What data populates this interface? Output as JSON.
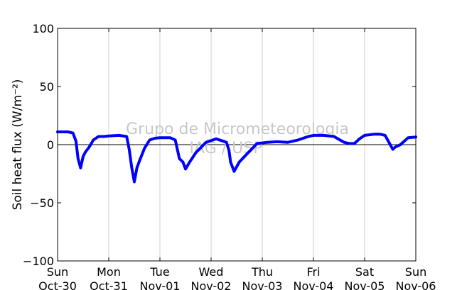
{
  "chart_data": {
    "type": "line",
    "ylabel": "Soil heat flux (W/m⁻²)",
    "ylim": [
      -100,
      100
    ],
    "yticks": [
      100,
      50,
      0,
      -50,
      -100
    ],
    "ytick_labels": [
      "100",
      "50",
      "0",
      "−50",
      "−100"
    ],
    "xlim": [
      0,
      7
    ],
    "xtick_labels": [
      {
        "day": "Sun",
        "date": "Oct-30"
      },
      {
        "day": "Mon",
        "date": "Oct-31"
      },
      {
        "day": "Tue",
        "date": "Nov-01"
      },
      {
        "day": "Wed",
        "date": "Nov-02"
      },
      {
        "day": "Thu",
        "date": "Nov-03"
      },
      {
        "day": "Fri",
        "date": "Nov-04"
      },
      {
        "day": "Sat",
        "date": "Nov-05"
      },
      {
        "day": "Sun",
        "date": "Nov-06"
      }
    ],
    "grid": "vertical",
    "reference_line": 0,
    "series": [
      {
        "color": "#0000ff",
        "x": [
          0.0,
          0.2,
          0.3,
          0.36,
          0.4,
          0.45,
          0.5,
          0.55,
          0.62,
          0.7,
          0.8,
          0.9,
          1.0,
          1.2,
          1.35,
          1.4,
          1.45,
          1.5,
          1.55,
          1.6,
          1.7,
          1.8,
          1.9,
          2.0,
          2.2,
          2.3,
          2.38,
          2.45,
          2.5,
          2.58,
          2.7,
          2.9,
          3.1,
          3.3,
          3.35,
          3.38,
          3.45,
          3.55,
          3.7,
          3.9,
          4.1,
          4.3,
          4.5,
          4.7,
          4.9,
          5.0,
          5.2,
          5.4,
          5.6,
          5.7,
          5.8,
          5.9,
          6.0,
          6.2,
          6.3,
          6.4,
          6.5,
          6.55,
          6.6,
          6.7,
          6.85,
          7.0
        ],
        "y": [
          11,
          11,
          10,
          3,
          -12,
          -20,
          -10,
          -6,
          -2,
          4,
          7,
          7,
          7.5,
          8,
          7,
          -4,
          -20,
          -32,
          -20,
          -14,
          -3,
          4,
          5.5,
          6,
          6,
          4,
          -12,
          -15,
          -21,
          -15,
          -7,
          2,
          5,
          2,
          -5,
          -15,
          -23,
          -15,
          -8,
          1,
          2,
          2.5,
          2,
          4,
          7,
          8,
          8,
          7,
          2,
          1,
          1,
          5,
          8,
          9,
          9,
          8,
          0,
          -4,
          -2,
          0,
          6,
          6.5
        ]
      }
    ]
  },
  "watermark": {
    "line1": "Grupo de Micrometeorologia",
    "line2": "IAG / USP"
  }
}
